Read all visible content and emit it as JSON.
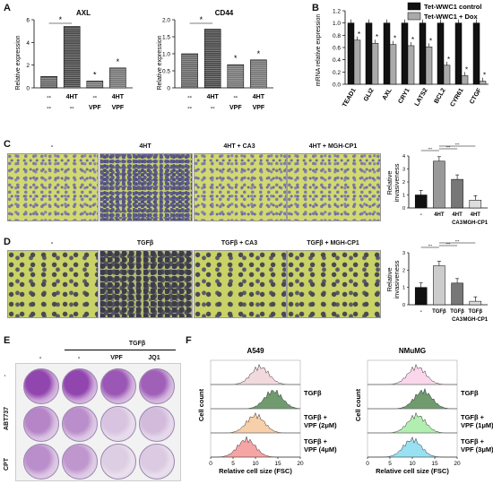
{
  "panels": {
    "A": "A",
    "B": "B",
    "C": "C",
    "D": "D",
    "E": "E",
    "F": "F"
  },
  "panelA": {
    "ylabel": "Relative expression",
    "charts": [
      {
        "title": "AXL",
        "type": "bar",
        "categories": [
          "1",
          "2",
          "3",
          "4"
        ],
        "values": [
          1.0,
          5.4,
          0.6,
          1.75
        ],
        "ylim": [
          0,
          6
        ],
        "yticks": [
          "0",
          "2",
          "4",
          "6"
        ],
        "pattern": [
          "#777",
          "#555",
          "#888",
          "#666"
        ]
      },
      {
        "title": "CD44",
        "type": "bar",
        "categories": [
          "1",
          "2",
          "3",
          "4"
        ],
        "values": [
          1.0,
          1.72,
          0.68,
          0.82
        ],
        "ylim": [
          0,
          2.0
        ],
        "yticks": [
          "0",
          "0.5",
          "1.0",
          "1.5",
          "2.0"
        ],
        "pattern": [
          "#777",
          "#555",
          "#888",
          "#666"
        ]
      }
    ],
    "xrow1": [
      "--",
      "4HT",
      "--",
      "4HT"
    ],
    "xrow2": [
      "--",
      "--",
      "VPF",
      "VPF"
    ],
    "sig": "*"
  },
  "panelB": {
    "ylabel": "mRNA relative expression",
    "legend": [
      "Tet-WWC1 control",
      "Tet-WWC1 + Dox"
    ],
    "colors": [
      "#111111",
      "#aaaaaa"
    ],
    "chart_data": {
      "type": "bar",
      "categories": [
        "TEAD1",
        "GLI2",
        "AXL",
        "CRY1",
        "LATS2",
        "BCL2",
        "CYR61",
        "CTGF"
      ],
      "series": [
        {
          "name": "Tet-WWC1 control",
          "values": [
            1,
            1,
            1,
            1,
            1,
            1,
            1,
            1
          ]
        },
        {
          "name": "Tet-WWC1 + Dox",
          "values": [
            0.72,
            0.67,
            0.65,
            0.63,
            0.61,
            0.31,
            0.14,
            0.05
          ]
        }
      ],
      "ylim": [
        0,
        1.2
      ],
      "yticks": [
        "0.0",
        "0.2",
        "0.4",
        "0.6",
        "0.8",
        "1.0",
        "1.2"
      ]
    },
    "sig": "*"
  },
  "panelC": {
    "labels": [
      "-",
      "4HT",
      "4HT + CA3",
      "4HT + MGH-CP1"
    ],
    "ylabel": "Relative invasiveness",
    "chart_data": {
      "type": "bar",
      "values": [
        1.0,
        3.6,
        2.2,
        0.6
      ],
      "ylim": [
        0,
        4
      ],
      "yticks": [
        "0",
        "1",
        "2",
        "3",
        "4"
      ],
      "colors": [
        "#111",
        "#999",
        "#777",
        "#ddd"
      ]
    },
    "xrow1": [
      "-",
      "4HT",
      "4HT",
      "4HT"
    ],
    "xrow2": [
      "",
      "",
      "CA3",
      "MGH-CP1"
    ],
    "sig": "***"
  },
  "panelD": {
    "labels": [
      "-",
      "TGFβ",
      "TGFβ + CA3",
      "TGFβ + MGH-CP1"
    ],
    "ylabel": "Relative invasiveness",
    "chart_data": {
      "type": "bar",
      "values": [
        1.0,
        2.25,
        1.25,
        0.2
      ],
      "ylim": [
        0,
        3
      ],
      "yticks": [
        "0",
        "1",
        "2",
        "3"
      ],
      "colors": [
        "#111",
        "#ccc",
        "#777",
        "#ddd"
      ]
    },
    "xrow1": [
      "-",
      "TGFβ",
      "TGFβ",
      "TGFβ"
    ],
    "xrow2": [
      "",
      "",
      "CA3",
      "MGH-CP1"
    ],
    "sig": "***"
  },
  "panelE": {
    "top": "TGFβ",
    "cols": [
      "-",
      "-",
      "VPF",
      "JQ1"
    ],
    "rows": [
      ".",
      "ABT737",
      "CPT"
    ]
  },
  "panelF": {
    "titles": [
      "A549",
      "NMuMG"
    ],
    "ylabel": "Cell count",
    "xlabel": "Relative cell size (FSC)",
    "xticks": [
      "0",
      "5",
      "10",
      "15",
      "20"
    ],
    "rowlabels": [
      "",
      "TGFβ",
      "TGFβ +\nVPF (2μM)",
      "TGFβ +\nVPF (4μM)"
    ],
    "rowlabels2": [
      "",
      "TGFβ",
      "TGFβ +\nVPF (1μM)",
      "TGFβ +\nVPF (3μM)"
    ],
    "colorsA": [
      "#e7b9c2",
      "#3f7a3f",
      "#f1a860",
      "#ee5a5a"
    ],
    "colorsN": [
      "#f7b6dc",
      "#3f7a3f",
      "#72e070",
      "#45c7e8"
    ]
  }
}
